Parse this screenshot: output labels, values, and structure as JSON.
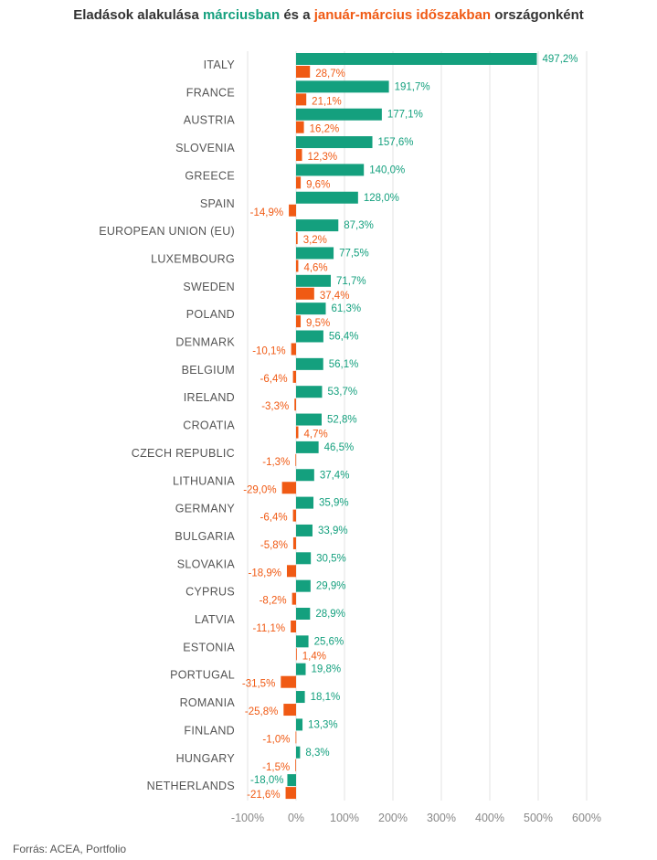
{
  "title": {
    "part1": "Eladások alakulása ",
    "march": "márciusban",
    "part2": " és a ",
    "ytd": "január-március időszakban",
    "part3": " országonként"
  },
  "source": "Forrás: ACEA, Portfolio",
  "colors": {
    "march": "#14a07e",
    "ytd": "#f05a14",
    "grid": "#e3e3e3",
    "axis_text": "#888888",
    "label_text": "#555555"
  },
  "chart_data": {
    "type": "bar",
    "orientation": "horizontal",
    "xlim": [
      -100,
      600
    ],
    "x_ticks": [
      -100,
      0,
      100,
      200,
      300,
      400,
      500,
      600
    ],
    "x_tick_labels": [
      "-100%",
      "0%",
      "100%",
      "200%",
      "300%",
      "400%",
      "500%",
      "600%"
    ],
    "grid": true,
    "categories": [
      "ITALY",
      "FRANCE",
      "AUSTRIA",
      "SLOVENIA",
      "GREECE",
      "SPAIN",
      "EUROPEAN UNION (EU)",
      "LUXEMBOURG",
      "SWEDEN",
      "POLAND",
      "DENMARK",
      "BELGIUM",
      "IRELAND",
      "CROATIA",
      "CZECH REPUBLIC",
      "LITHUANIA",
      "GERMANY",
      "BULGARIA",
      "SLOVAKIA",
      "CYPRUS",
      "LATVIA",
      "ESTONIA",
      "PORTUGAL",
      "ROMANIA",
      "FINLAND",
      "HUNGARY",
      "NETHERLANDS"
    ],
    "series": [
      {
        "name": "márciusban",
        "color": "#14a07e",
        "values": [
          497.2,
          191.7,
          177.1,
          157.6,
          140.0,
          128.0,
          87.3,
          77.5,
          71.7,
          61.3,
          56.4,
          56.1,
          53.7,
          52.8,
          46.5,
          37.4,
          35.9,
          33.9,
          30.5,
          29.9,
          28.9,
          25.6,
          19.8,
          18.1,
          13.3,
          8.3,
          -18.0
        ],
        "labels": [
          "497,2%",
          "191,7%",
          "177,1%",
          "157,6%",
          "140,0%",
          "128,0%",
          "87,3%",
          "77,5%",
          "71,7%",
          "61,3%",
          "56,4%",
          "56,1%",
          "53,7%",
          "52,8%",
          "46,5%",
          "37,4%",
          "35,9%",
          "33,9%",
          "30,5%",
          "29,9%",
          "28,9%",
          "25,6%",
          "19,8%",
          "18,1%",
          "13,3%",
          "8,3%",
          "-18,0%"
        ]
      },
      {
        "name": "január-március időszakban",
        "color": "#f05a14",
        "values": [
          28.7,
          21.1,
          16.2,
          12.3,
          9.6,
          -14.9,
          3.2,
          4.6,
          37.4,
          9.5,
          -10.1,
          -6.4,
          -3.3,
          4.7,
          -1.3,
          -29.0,
          -6.4,
          -5.8,
          -18.9,
          -8.2,
          -11.1,
          1.4,
          -31.5,
          -25.8,
          -1.0,
          -1.5,
          -21.6
        ],
        "labels": [
          "28,7%",
          "21,1%",
          "16,2%",
          "12,3%",
          "9,6%",
          "-14,9%",
          "3,2%",
          "4,6%",
          "37,4%",
          "9,5%",
          "-10,1%",
          "-6,4%",
          "-3,3%",
          "4,7%",
          "-1,3%",
          "-29,0%",
          "-6,4%",
          "-5,8%",
          "-18,9%",
          "-8,2%",
          "-11,1%",
          "1,4%",
          "-31,5%",
          "-25,8%",
          "-1,0%",
          "-1,5%",
          "-21,6%"
        ]
      }
    ]
  }
}
